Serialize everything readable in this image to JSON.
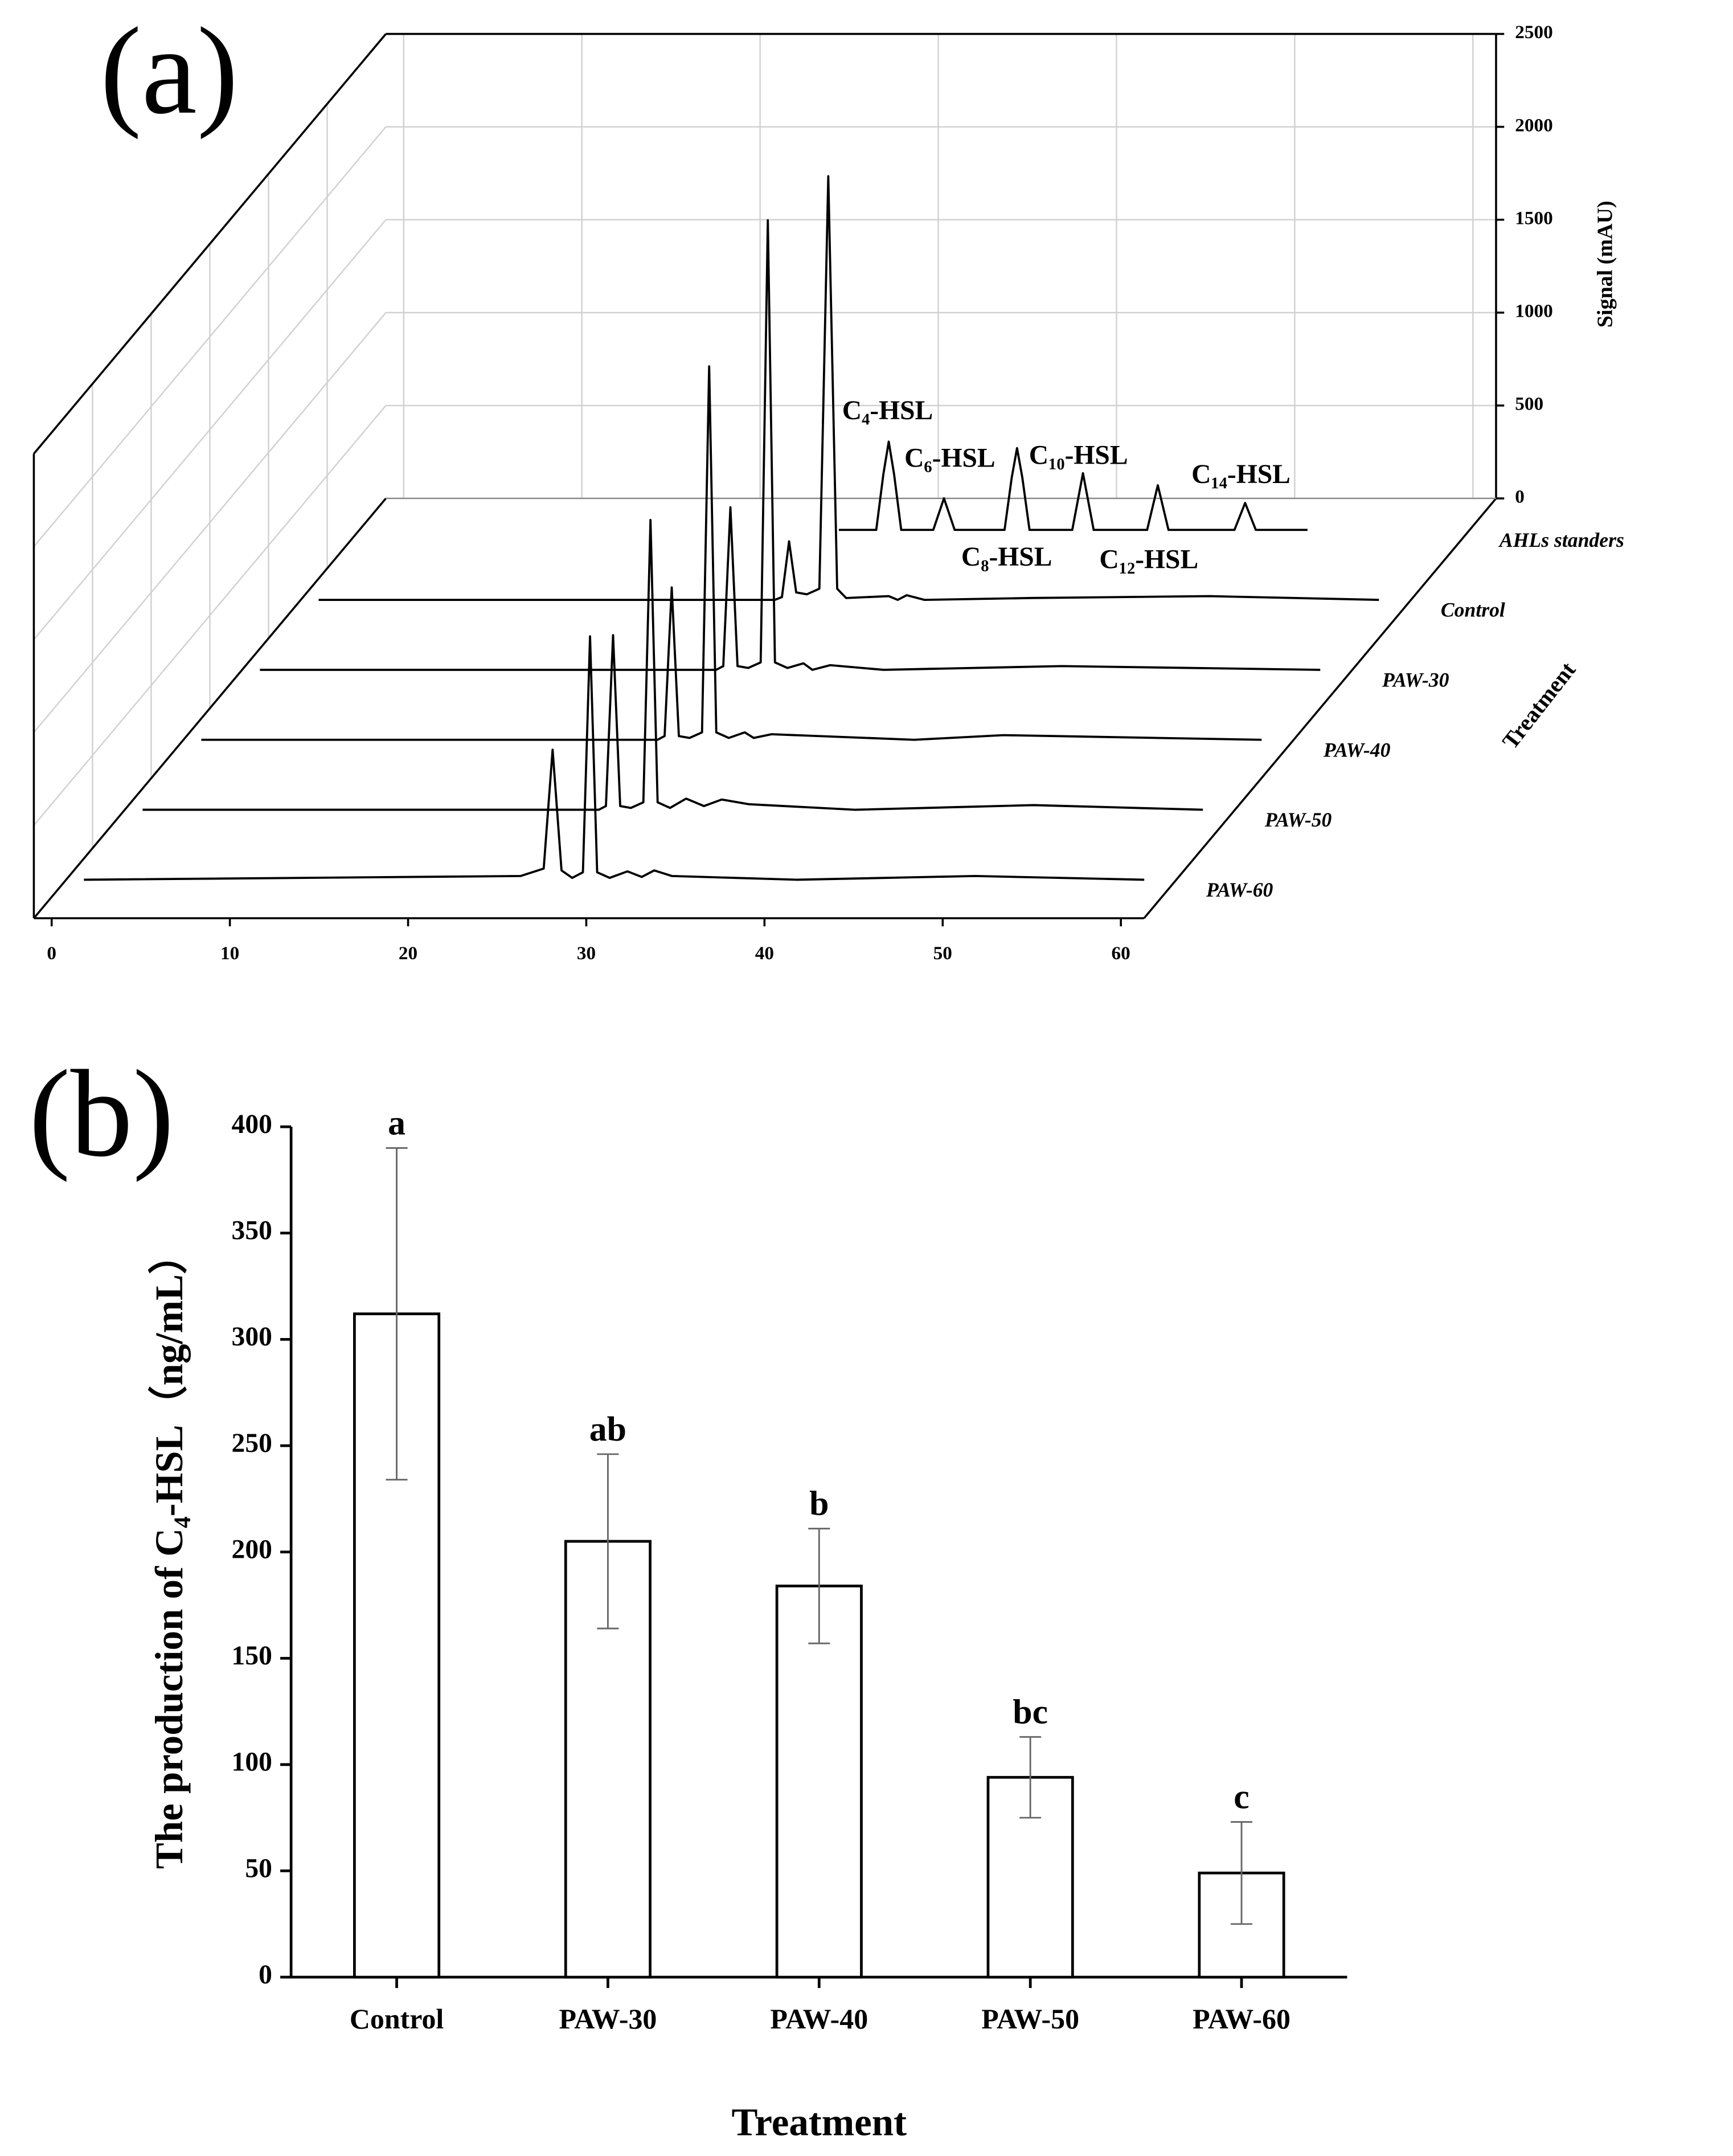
{
  "chart_data": [
    {
      "type": "waterfall",
      "panel_label": "(a)",
      "x_tick_labels_axis": "front",
      "xlim": [
        -1,
        61.3
      ],
      "xticks": [
        0,
        10,
        20,
        30,
        40,
        50,
        60
      ],
      "zlim": [
        0,
        2500
      ],
      "zticks": [
        0,
        500,
        1000,
        1500,
        2000,
        2500
      ],
      "zlabel": "Signal (mAU)",
      "depth_label": "Treatment",
      "grid": true,
      "series": [
        {
          "name": "AHLs standers",
          "color": "#000000",
          "x": [
            25.9,
            28.0,
            28.4,
            28.7,
            29.0,
            29.4,
            31.2,
            31.8,
            32.4,
            35.2,
            35.6,
            35.9,
            36.2,
            36.6,
            39.0,
            39.6,
            40.2,
            43.2,
            43.8,
            44.4,
            48.1,
            48.7,
            49.3,
            52.2
          ],
          "values": [
            0,
            0,
            300,
            475,
            300,
            0,
            0,
            170,
            0,
            0,
            280,
            440,
            280,
            0,
            0,
            305,
            0,
            0,
            240,
            0,
            0,
            145,
            0,
            0
          ]
        },
        {
          "name": "Control",
          "color": "#000000",
          "x": [
            0,
            25.6,
            26.0,
            26.4,
            26.8,
            27.4,
            28.1,
            28.6,
            29.1,
            29.6,
            32.0,
            32.5,
            33.0,
            34.0,
            40.0,
            50.0,
            59.5
          ],
          "values": [
            0,
            0,
            15,
            315,
            40,
            30,
            60,
            2280,
            60,
            10,
            20,
            0,
            25,
            0,
            10,
            20,
            0
          ]
        },
        {
          "name": "PAW-30",
          "color": "#000000",
          "x": [
            0,
            25.6,
            26.0,
            26.4,
            26.8,
            27.4,
            28.1,
            28.5,
            28.9,
            29.6,
            30.5,
            31.0,
            32.0,
            35.0,
            45.0,
            59.5
          ],
          "values": [
            0,
            0,
            20,
            875,
            20,
            10,
            40,
            2420,
            40,
            10,
            35,
            0,
            25,
            0,
            20,
            0
          ]
        },
        {
          "name": "PAW-40",
          "color": "#000000",
          "x": [
            0,
            25.6,
            26.0,
            26.4,
            26.8,
            27.4,
            28.1,
            28.5,
            28.9,
            29.6,
            30.5,
            31.0,
            32.0,
            40.0,
            45.0,
            59.5
          ],
          "values": [
            0,
            0,
            20,
            820,
            20,
            10,
            40,
            2010,
            40,
            10,
            40,
            10,
            30,
            0,
            25,
            0
          ]
        },
        {
          "name": "PAW-50",
          "color": "#000000",
          "x": [
            0,
            25.6,
            26.0,
            26.4,
            26.8,
            27.4,
            28.1,
            28.5,
            28.9,
            29.6,
            30.5,
            31.5,
            32.5,
            34.0,
            40.0,
            50.0,
            59.5
          ],
          "values": [
            0,
            0,
            20,
            940,
            20,
            10,
            40,
            1560,
            40,
            10,
            60,
            20,
            55,
            30,
            0,
            25,
            0
          ]
        },
        {
          "name": "PAW-60",
          "color": "#000000",
          "x": [
            0,
            24.5,
            25.8,
            26.3,
            26.8,
            27.4,
            28.0,
            28.4,
            28.8,
            29.5,
            30.5,
            31.3,
            32.0,
            33.0,
            40.0,
            50.0,
            59.5
          ],
          "values": [
            0,
            20,
            60,
            700,
            50,
            10,
            40,
            1310,
            40,
            10,
            45,
            15,
            50,
            20,
            0,
            20,
            0
          ]
        }
      ],
      "annotations": [
        "C₄-HSL",
        "C₆-HSL",
        "C₁₀-HSL",
        "C₁₄-HSL",
        "C₈-HSL",
        "C₁₂-HSL"
      ]
    },
    {
      "type": "bar",
      "panel_label": "(b)",
      "categories": [
        "Control",
        "PAW-30",
        "PAW-40",
        "PAW-50",
        "PAW-60"
      ],
      "values": [
        312,
        205,
        184,
        94,
        49
      ],
      "errors": [
        78,
        41,
        27,
        19,
        24
      ],
      "annotations": [
        "a",
        "ab",
        "b",
        "bc",
        "c"
      ],
      "color": "#ffffff",
      "ylim": [
        0,
        400
      ],
      "yticks": [
        0,
        50,
        100,
        150,
        200,
        250,
        300,
        350,
        400
      ],
      "xlabel": "Treatment",
      "ylabel": "The production of C₄-HSL（ng/mL）"
    }
  ]
}
